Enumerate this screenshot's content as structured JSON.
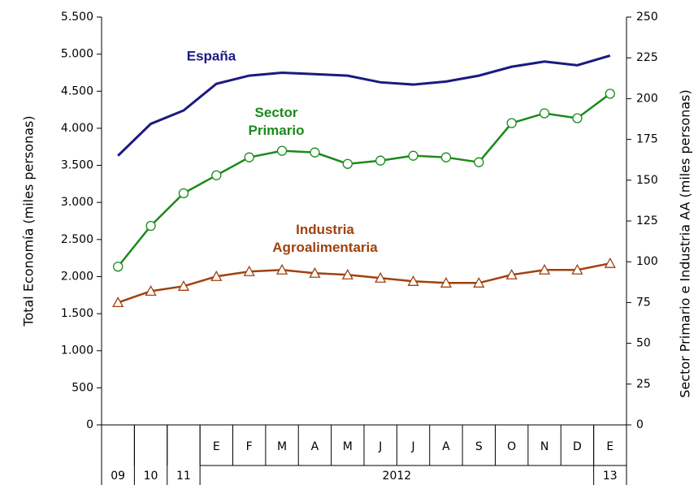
{
  "chart_data": {
    "type": "line",
    "ylabel": "Total Economía (miles personas)",
    "y2label": "Sector Primario e Industria AA (miles personas)",
    "categories": [
      null,
      null,
      null,
      "E",
      "F",
      "M",
      "A",
      "M",
      "J",
      "J",
      "A",
      "S",
      "O",
      "N",
      "D",
      "E"
    ],
    "group_labels": [
      "09",
      "10",
      "11",
      "2012",
      "13"
    ],
    "group_sizes": [
      1,
      1,
      1,
      12,
      1
    ],
    "ylim": [
      0,
      5500
    ],
    "yticks": [
      0,
      500,
      {
        "value": 1000,
        "label": "1.000"
      },
      {
        "value": 1500,
        "label": "1.500"
      },
      {
        "value": 2000,
        "label": "2.000"
      },
      {
        "value": 2500,
        "label": "2.500"
      },
      {
        "value": 3000,
        "label": "3.000"
      },
      {
        "value": 3500,
        "label": "3.500"
      },
      {
        "value": 4000,
        "label": "4.000"
      },
      {
        "value": 4500,
        "label": "4.500"
      },
      {
        "value": 5000,
        "label": "5.000"
      },
      {
        "value": 5500,
        "label": "5.500"
      }
    ],
    "y2lim": [
      0,
      250
    ],
    "y2ticks": [
      0,
      25,
      50,
      75,
      100,
      125,
      150,
      175,
      200,
      225,
      250
    ],
    "series": [
      {
        "name": "España",
        "color": "#1a1a80",
        "marker": "none",
        "values": [
          3630,
          4060,
          4240,
          4600,
          4710,
          4750,
          4730,
          4710,
          4620,
          4590,
          4630,
          4710,
          4830,
          4900,
          4850,
          4980
        ]
      },
      {
        "name": "Sector Primario",
        "color": "#1a8a1a",
        "marker": "circle",
        "axis": "y2",
        "values": [
          97,
          122,
          142,
          153,
          164,
          168,
          167,
          160,
          162,
          165,
          164,
          161,
          185,
          191,
          188,
          203
        ]
      },
      {
        "name": "Industria Agroalimentaria",
        "color": "#a0410f",
        "marker": "triangle",
        "axis": "y2",
        "values": [
          75,
          82,
          85,
          91,
          94,
          95,
          93,
          92,
          90,
          88,
          87,
          87,
          92,
          95,
          95,
          99
        ]
      }
    ]
  }
}
